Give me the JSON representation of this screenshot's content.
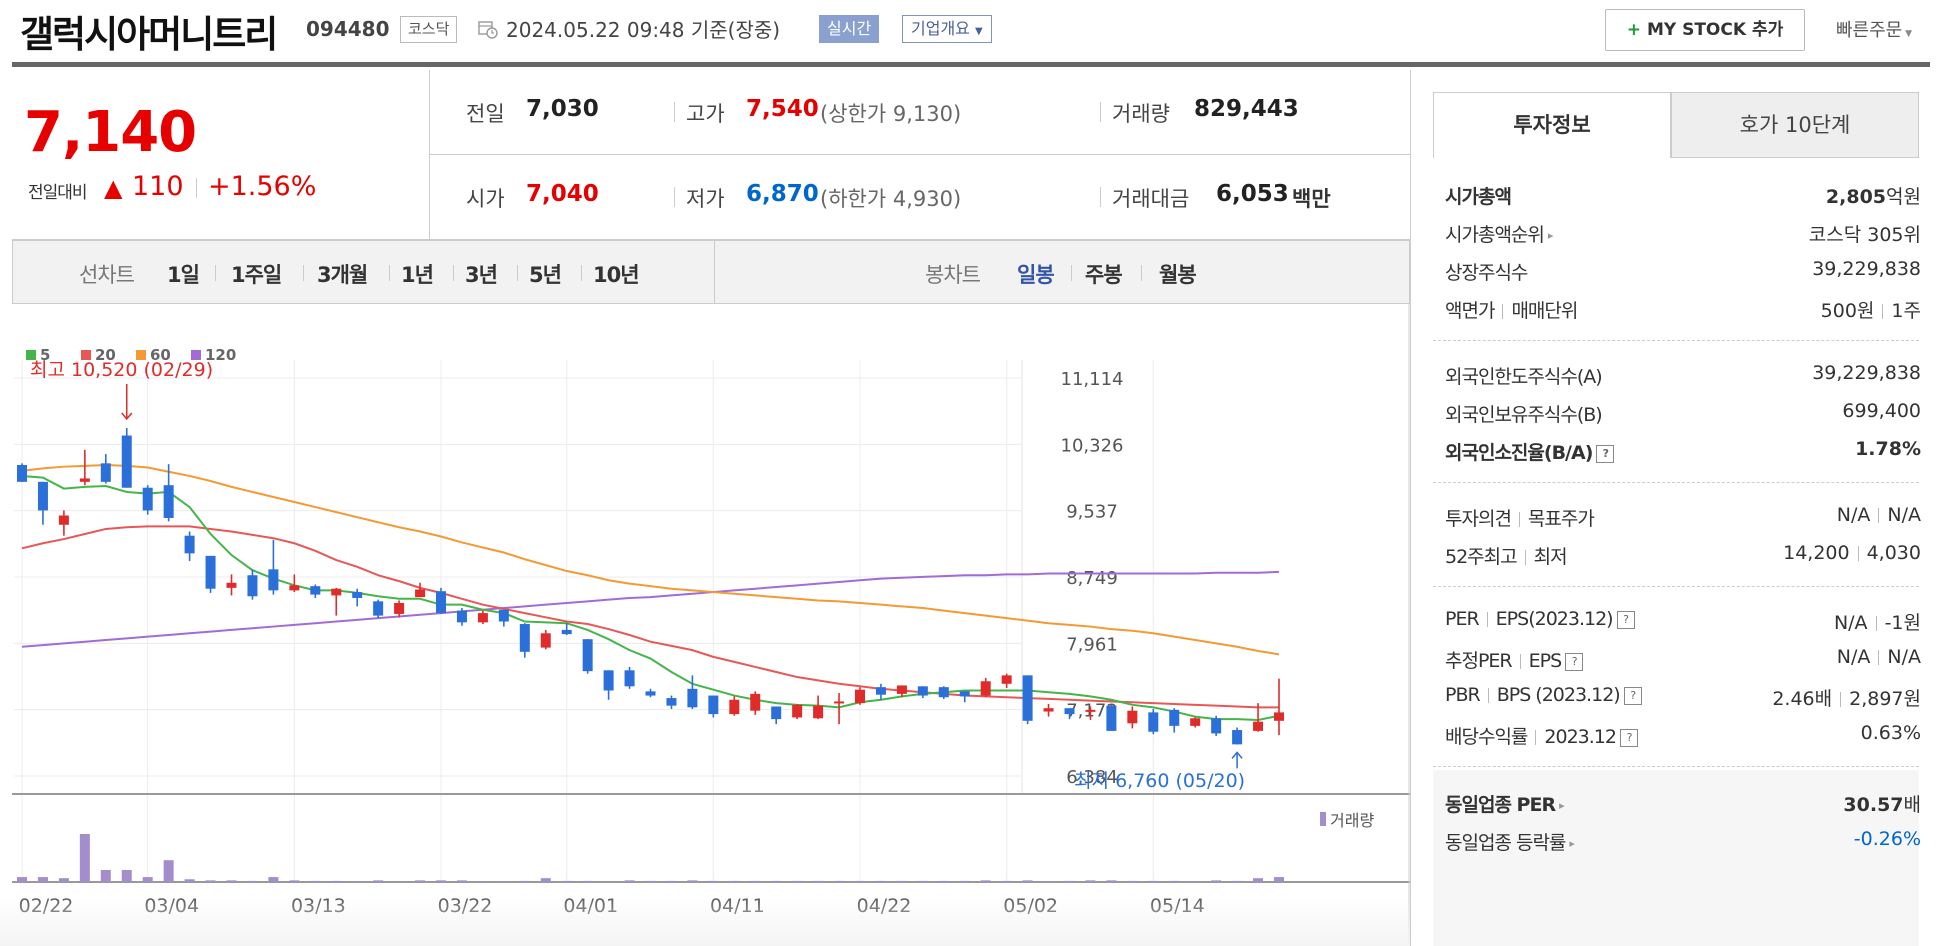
{
  "header": {
    "company": "갤럭시아머니트리",
    "code": "094480",
    "market": "코스닥",
    "datetime": "2024.05.22 09:48 기준(장중)",
    "realtime": "실시간",
    "corp_summary": "기업개요",
    "mystock_plus": "+",
    "mystock_label": "MY STOCK 추가",
    "quick_order": "빠른주문"
  },
  "price": {
    "current": "7,140",
    "change_label": "전일대비",
    "change_arrow": "▲",
    "change": "110",
    "change_pct": "+1.56%"
  },
  "info": {
    "prev_close_label": "전일",
    "prev_close": "7,030",
    "high_label": "고가",
    "high": "7,540",
    "upper_limit": "(상한가 9,130)",
    "volume_label": "거래량",
    "volume": "829,443",
    "open_label": "시가",
    "open": "7,040",
    "low_label": "저가",
    "low": "6,870",
    "lower_limit": "(하한가 4,930)",
    "amount_label": "거래대금",
    "amount": "6,053",
    "amount_unit": "백만"
  },
  "periods": {
    "line_chart_label": "선차트",
    "line_options": [
      "1일",
      "1주일",
      "3개월",
      "1년",
      "3년",
      "5년",
      "10년"
    ],
    "candle_chart_label": "봉차트",
    "candle_options": [
      "일봉",
      "주봉",
      "월봉"
    ],
    "selected_candle": "일봉"
  },
  "chart_data": {
    "type": "candlestick",
    "legend": [
      {
        "name": "5",
        "color": "#44b549"
      },
      {
        "name": "20",
        "color": "#e85757"
      },
      {
        "name": "60",
        "color": "#f39a34"
      },
      {
        "name": "120",
        "color": "#a26bd6"
      }
    ],
    "y_ticks": [
      "11,114",
      "10,326",
      "9,537",
      "8,749",
      "7,961",
      "7,172",
      "6,384"
    ],
    "ylim": [
      6384,
      11114
    ],
    "x_ticks": [
      {
        "label": "02/22",
        "index": 0
      },
      {
        "label": "03/04",
        "index": 6
      },
      {
        "label": "03/13",
        "index": 13
      },
      {
        "label": "03/22",
        "index": 20
      },
      {
        "label": "04/01",
        "index": 26
      },
      {
        "label": "04/11",
        "index": 33
      },
      {
        "label": "04/22",
        "index": 40
      },
      {
        "label": "05/02",
        "index": 47
      },
      {
        "label": "05/14",
        "index": 54
      }
    ],
    "max_annotation": "최고 10,520 (02/29)",
    "max_index": 5,
    "max_value": 10520,
    "min_annotation": "최저 6,760 (05/20)",
    "min_index": 58,
    "min_value": 6760,
    "volume_label": "거래량",
    "candles": [
      [
        10080,
        9880,
        10100,
        9880
      ],
      [
        9880,
        9540,
        9880,
        9370
      ],
      [
        9370,
        9480,
        9540,
        9240
      ],
      [
        9880,
        9920,
        10260,
        9840
      ],
      [
        10100,
        9880,
        10210,
        9860
      ],
      [
        10430,
        9810,
        10520,
        9810
      ],
      [
        9810,
        9540,
        9840,
        9490
      ],
      [
        9840,
        9450,
        10090,
        9410
      ],
      [
        9240,
        9030,
        9290,
        8940
      ],
      [
        9000,
        8610,
        9000,
        8560
      ],
      [
        8620,
        8680,
        8780,
        8530
      ],
      [
        8770,
        8520,
        8840,
        8480
      ],
      [
        8840,
        8590,
        9190,
        8540
      ],
      [
        8590,
        8650,
        8780,
        8570
      ],
      [
        8640,
        8540,
        8660,
        8500
      ],
      [
        8530,
        8610,
        8620,
        8290
      ],
      [
        8570,
        8500,
        8610,
        8400
      ],
      [
        8460,
        8290,
        8480,
        8260
      ],
      [
        8310,
        8440,
        8470,
        8270
      ],
      [
        8510,
        8600,
        8680,
        8520
      ],
      [
        8580,
        8320,
        8620,
        8310
      ],
      [
        8350,
        8210,
        8380,
        8170
      ],
      [
        8210,
        8320,
        8350,
        8190
      ],
      [
        8360,
        8220,
        8360,
        8160
      ],
      [
        8190,
        7860,
        8200,
        7790
      ],
      [
        7910,
        8080,
        8120,
        7890
      ],
      [
        8120,
        8070,
        8200,
        8060
      ],
      [
        8010,
        7630,
        8010,
        7600
      ],
      [
        7640,
        7400,
        7640,
        7290
      ],
      [
        7640,
        7450,
        7680,
        7420
      ],
      [
        7390,
        7340,
        7420,
        7320
      ],
      [
        7310,
        7220,
        7340,
        7180
      ],
      [
        7420,
        7200,
        7580,
        7180
      ],
      [
        7340,
        7120,
        7340,
        7080
      ],
      [
        7120,
        7290,
        7330,
        7100
      ],
      [
        7160,
        7360,
        7390,
        7110
      ],
      [
        7210,
        7060,
        7210,
        7000
      ],
      [
        7080,
        7230,
        7240,
        7060
      ],
      [
        7070,
        7220,
        7340,
        7060
      ],
      [
        7250,
        7270,
        7370,
        7000
      ],
      [
        7250,
        7410,
        7440,
        7230
      ],
      [
        7440,
        7350,
        7480,
        7290
      ],
      [
        7360,
        7460,
        7460,
        7320
      ],
      [
        7450,
        7340,
        7450,
        7310
      ],
      [
        7440,
        7320,
        7450,
        7300
      ],
      [
        7390,
        7330,
        7390,
        7260
      ],
      [
        7340,
        7510,
        7550,
        7320
      ],
      [
        7480,
        7580,
        7600,
        7430
      ],
      [
        7580,
        7040,
        7580,
        7000
      ],
      [
        7150,
        7190,
        7240,
        7090
      ],
      [
        7190,
        7120,
        7190,
        7060
      ],
      [
        7160,
        7170,
        7210,
        7050
      ],
      [
        7220,
        6920,
        7230,
        6920
      ],
      [
        7010,
        7160,
        7210,
        6950
      ],
      [
        7140,
        6910,
        7180,
        6880
      ],
      [
        7170,
        6980,
        7190,
        6900
      ],
      [
        6980,
        7070,
        7080,
        6960
      ],
      [
        7070,
        6890,
        7100,
        6860
      ],
      [
        6930,
        6760,
        6960,
        6760
      ],
      [
        6920,
        7030,
        7250,
        6910
      ],
      [
        7040,
        7140,
        7540,
        6870
      ]
    ],
    "volumes": [
      9,
      9,
      7,
      88,
      22,
      22,
      9,
      40,
      5,
      3,
      3,
      2,
      9,
      3,
      2,
      2,
      1,
      3,
      1,
      3,
      3,
      3,
      1,
      1,
      2,
      7,
      2,
      2,
      1,
      3,
      2,
      2,
      3,
      2,
      2,
      2,
      2,
      2,
      2,
      2,
      2,
      2,
      2,
      2,
      2,
      2,
      3,
      2,
      3,
      1,
      2,
      3,
      3,
      2,
      2,
      2,
      1,
      3,
      2,
      7,
      9
    ],
    "ma5": [
      9950,
      9930,
      9800,
      9820,
      9830,
      9760,
      9740,
      9760,
      9580,
      9260,
      9010,
      8830,
      8730,
      8650,
      8590,
      8590,
      8560,
      8520,
      8490,
      8490,
      8420,
      8420,
      8360,
      8320,
      8220,
      8210,
      8200,
      8120,
      8010,
      7880,
      7780,
      7620,
      7480,
      7410,
      7340,
      7290,
      7250,
      7230,
      7220,
      7200,
      7260,
      7290,
      7330,
      7360,
      7380,
      7400,
      7400,
      7400,
      7400,
      7380,
      7360,
      7330,
      7290,
      7230,
      7200,
      7150,
      7090,
      7060,
      7060,
      7050,
      7100
    ],
    "ma20": [
      9090,
      9150,
      9200,
      9260,
      9320,
      9340,
      9350,
      9350,
      9350,
      9320,
      9290,
      9250,
      9210,
      9150,
      9060,
      8950,
      8870,
      8770,
      8700,
      8620,
      8560,
      8490,
      8420,
      8370,
      8320,
      8270,
      8220,
      8190,
      8130,
      8060,
      7980,
      7930,
      7880,
      7800,
      7740,
      7680,
      7620,
      7560,
      7520,
      7480,
      7450,
      7420,
      7400,
      7380,
      7360,
      7340,
      7330,
      7320,
      7310,
      7300,
      7290,
      7280,
      7270,
      7260,
      7250,
      7240,
      7230,
      7220,
      7210,
      7200,
      7200
    ],
    "ma60": [
      10010,
      10040,
      10060,
      10070,
      10080,
      10070,
      10050,
      10000,
      9950,
      9890,
      9820,
      9760,
      9700,
      9640,
      9580,
      9520,
      9460,
      9400,
      9340,
      9290,
      9230,
      9160,
      9100,
      9040,
      8960,
      8890,
      8820,
      8770,
      8710,
      8670,
      8640,
      8610,
      8590,
      8570,
      8550,
      8530,
      8510,
      8490,
      8470,
      8460,
      8440,
      8420,
      8400,
      8380,
      8350,
      8320,
      8290,
      8260,
      8230,
      8200,
      8180,
      8160,
      8130,
      8110,
      8080,
      8040,
      8000,
      7960,
      7920,
      7870,
      7830
    ],
    "ma120": [
      7920,
      7940,
      7960,
      7980,
      8000,
      8020,
      8040,
      8060,
      8080,
      8100,
      8120,
      8140,
      8160,
      8180,
      8200,
      8220,
      8240,
      8260,
      8280,
      8300,
      8320,
      8340,
      8360,
      8380,
      8400,
      8420,
      8440,
      8460,
      8480,
      8500,
      8510,
      8530,
      8550,
      8570,
      8590,
      8610,
      8630,
      8650,
      8670,
      8690,
      8710,
      8730,
      8740,
      8750,
      8760,
      8770,
      8770,
      8780,
      8780,
      8790,
      8790,
      8790,
      8790,
      8790,
      8790,
      8790,
      8790,
      8800,
      8800,
      8800,
      8810
    ]
  },
  "invest": {
    "tab_active": "투자정보",
    "tab_other": "호가 10단계",
    "rows1": [
      {
        "k": "시가총액",
        "v": "2,805",
        "unit": "억원"
      },
      {
        "k": "시가총액순위",
        "v": "코스닥 305위"
      },
      {
        "k": "상장주식수",
        "v": "39,229,838"
      },
      {
        "k": "액면가",
        "k2": "매매단위",
        "v": "500원",
        "v2": "1주"
      }
    ],
    "rows2": [
      {
        "k": "외국인한도주식수(A)",
        "v": "39,229,838"
      },
      {
        "k": "외국인보유주식수(B)",
        "v": "699,400"
      },
      {
        "k": "외국인소진율(B/A)",
        "v": "1.78%"
      }
    ],
    "rows3": [
      {
        "k": "투자의견",
        "k2": "목표주가",
        "v": "N/A",
        "v2": "N/A"
      },
      {
        "k": "52주최고",
        "k2": "최저",
        "v": "14,200",
        "v2": "4,030"
      }
    ],
    "rows4": [
      {
        "k": "PER",
        "k2": "EPS(2023.12)",
        "v": "N/A",
        "v2": "-1원"
      },
      {
        "k": "추정PER",
        "k2": "EPS",
        "v": "N/A",
        "v2": "N/A"
      },
      {
        "k": "PBR",
        "k2": "BPS (2023.12)",
        "v": "2.46배",
        "v2": "2,897원"
      },
      {
        "k": "배당수익률",
        "k2": "2023.12",
        "v": "0.63%"
      }
    ],
    "rows5": [
      {
        "k": "동일업종 PER",
        "v": "30.57",
        "unit": "배"
      },
      {
        "k": "동일업종 등락률",
        "v": "-0.26%"
      }
    ],
    "help_glyph": "?",
    "arrow_glyph": "▸"
  }
}
